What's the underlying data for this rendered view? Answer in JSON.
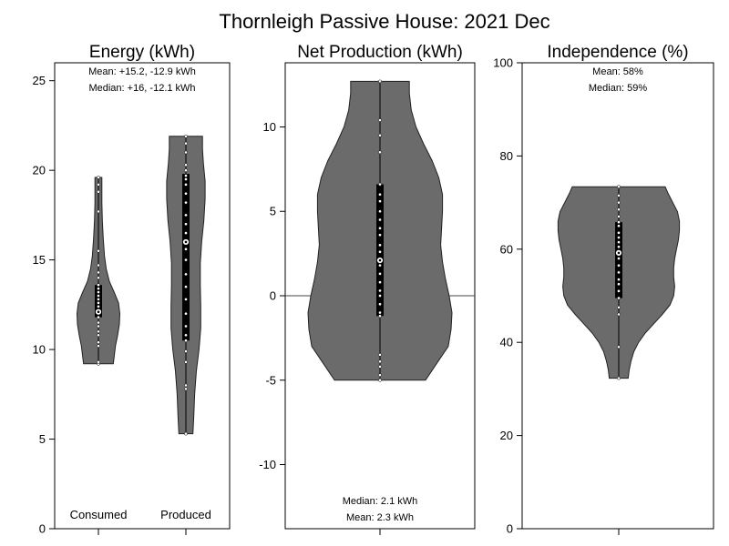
{
  "figure": {
    "title": "Thornleigh Passive House:  2021 Dec"
  },
  "colors": {
    "violin_fill": "#6b6b6b",
    "violin_stroke": "#222222",
    "box": "#000000",
    "points": "#ffffff",
    "frame": "#000000"
  },
  "chart_data": [
    {
      "type": "violin",
      "title": "Energy (kWh)",
      "ylim": [
        0,
        26
      ],
      "yticks": [
        0,
        5,
        10,
        15,
        20,
        25
      ],
      "notes": [
        "Mean: +15.2, -12.9 kWh",
        "Median: +16, -12.1 kWh"
      ],
      "categories": [
        "Consumed",
        "Produced"
      ],
      "series": [
        {
          "name": "Consumed",
          "min": 9.2,
          "q1": 11.8,
          "median": 12.1,
          "q3": 13.6,
          "max": 19.6,
          "density": [
            [
              9.2,
              0.34
            ],
            [
              9.6,
              0.36
            ],
            [
              10.2,
              0.39
            ],
            [
              10.8,
              0.44
            ],
            [
              11.4,
              0.48
            ],
            [
              12.0,
              0.49
            ],
            [
              12.6,
              0.46
            ],
            [
              13.2,
              0.36
            ],
            [
              13.8,
              0.25
            ],
            [
              14.5,
              0.18
            ],
            [
              15.2,
              0.14
            ],
            [
              16.2,
              0.11
            ],
            [
              17.2,
              0.09
            ],
            [
              18.2,
              0.08
            ],
            [
              19.0,
              0.08
            ],
            [
              19.6,
              0.08
            ]
          ],
          "points": [
            9.2,
            9.3,
            10.2,
            10.4,
            10.8,
            11.0,
            11.3,
            11.5,
            11.8,
            12.0,
            12.2,
            12.4,
            12.6,
            12.8,
            13.0,
            13.2,
            13.4,
            13.6,
            14.0,
            14.3,
            14.7,
            15.5,
            17.7,
            18.8,
            19.2,
            19.6
          ]
        },
        {
          "name": "Produced",
          "min": 5.3,
          "q1": 10.5,
          "median": 16.0,
          "q3": 19.8,
          "max": 21.9,
          "density": [
            [
              5.3,
              0.16
            ],
            [
              6.2,
              0.18
            ],
            [
              7.5,
              0.2
            ],
            [
              8.8,
              0.24
            ],
            [
              10.0,
              0.3
            ],
            [
              11.2,
              0.34
            ],
            [
              12.4,
              0.34
            ],
            [
              13.6,
              0.33
            ],
            [
              14.8,
              0.33
            ],
            [
              16.0,
              0.36
            ],
            [
              17.2,
              0.41
            ],
            [
              18.4,
              0.44
            ],
            [
              19.4,
              0.44
            ],
            [
              20.4,
              0.4
            ],
            [
              21.2,
              0.38
            ],
            [
              21.9,
              0.38
            ]
          ],
          "points": [
            5.3,
            7.8,
            8.0,
            9.3,
            9.9,
            10.5,
            10.8,
            11.3,
            12.0,
            12.8,
            13.5,
            14.2,
            15.0,
            15.6,
            16.0,
            16.5,
            17.0,
            17.5,
            18.2,
            18.7,
            19.2,
            19.5,
            19.7,
            20.0,
            20.3,
            21.0,
            21.5,
            21.9
          ]
        }
      ]
    },
    {
      "type": "violin",
      "title": "Net Production (kWh)",
      "ylim": [
        -13.8,
        13.8
      ],
      "yticks": [
        -10,
        -5,
        0,
        5,
        10
      ],
      "zero_line": true,
      "notes": [
        "Median: 2.1 kWh",
        "Mean: 2.3 kWh"
      ],
      "series": [
        {
          "min": -5.0,
          "q1": -1.2,
          "median": 2.1,
          "q3": 6.6,
          "max": 12.7,
          "density": [
            [
              -5.0,
              0.48
            ],
            [
              -4.0,
              0.6
            ],
            [
              -3.0,
              0.72
            ],
            [
              -2.0,
              0.75
            ],
            [
              -1.0,
              0.76
            ],
            [
              0.0,
              0.73
            ],
            [
              1.0,
              0.69
            ],
            [
              2.0,
              0.66
            ],
            [
              3.0,
              0.64
            ],
            [
              4.0,
              0.65
            ],
            [
              5.0,
              0.66
            ],
            [
              6.0,
              0.66
            ],
            [
              7.0,
              0.62
            ],
            [
              8.0,
              0.55
            ],
            [
              9.0,
              0.46
            ],
            [
              10.0,
              0.38
            ],
            [
              11.0,
              0.33
            ],
            [
              12.0,
              0.31
            ],
            [
              12.7,
              0.31
            ]
          ],
          "points": [
            -5.0,
            -4.7,
            -4.2,
            -3.9,
            -3.5,
            -1.2,
            -1.0,
            -0.5,
            0.0,
            0.3,
            0.8,
            1.3,
            1.8,
            2.1,
            2.6,
            3.0,
            3.6,
            4.0,
            4.5,
            5.0,
            5.6,
            6.0,
            6.6,
            8.5,
            9.5,
            10.4,
            12.7
          ]
        }
      ]
    },
    {
      "type": "violin",
      "title": "Independence (%)",
      "ylim": [
        0,
        100
      ],
      "yticks": [
        0,
        20,
        40,
        60,
        80,
        100
      ],
      "notes": [
        "Mean: 58%",
        "Median: 59%"
      ],
      "series": [
        {
          "min": 32.3,
          "q1": 49.5,
          "median": 59.2,
          "q3": 65.8,
          "max": 73.4,
          "density": [
            [
              32.3,
              0.1
            ],
            [
              34.0,
              0.11
            ],
            [
              36.0,
              0.13
            ],
            [
              38.0,
              0.16
            ],
            [
              40.0,
              0.21
            ],
            [
              42.0,
              0.28
            ],
            [
              44.0,
              0.37
            ],
            [
              46.0,
              0.46
            ],
            [
              48.0,
              0.54
            ],
            [
              50.0,
              0.58
            ],
            [
              52.0,
              0.59
            ],
            [
              54.0,
              0.58
            ],
            [
              56.0,
              0.58
            ],
            [
              58.0,
              0.59
            ],
            [
              60.0,
              0.61
            ],
            [
              62.0,
              0.63
            ],
            [
              64.0,
              0.64
            ],
            [
              66.0,
              0.64
            ],
            [
              68.0,
              0.62
            ],
            [
              70.0,
              0.57
            ],
            [
              72.0,
              0.52
            ],
            [
              73.4,
              0.49
            ]
          ],
          "points": [
            32.3,
            39.0,
            46.0,
            47.5,
            49.5,
            51.0,
            52.5,
            53.5,
            55.0,
            56.5,
            58.0,
            59.2,
            60.5,
            61.5,
            62.5,
            63.5,
            65.0,
            65.8,
            67.0,
            68.5,
            70.0,
            71.5,
            73.4
          ]
        }
      ]
    }
  ]
}
